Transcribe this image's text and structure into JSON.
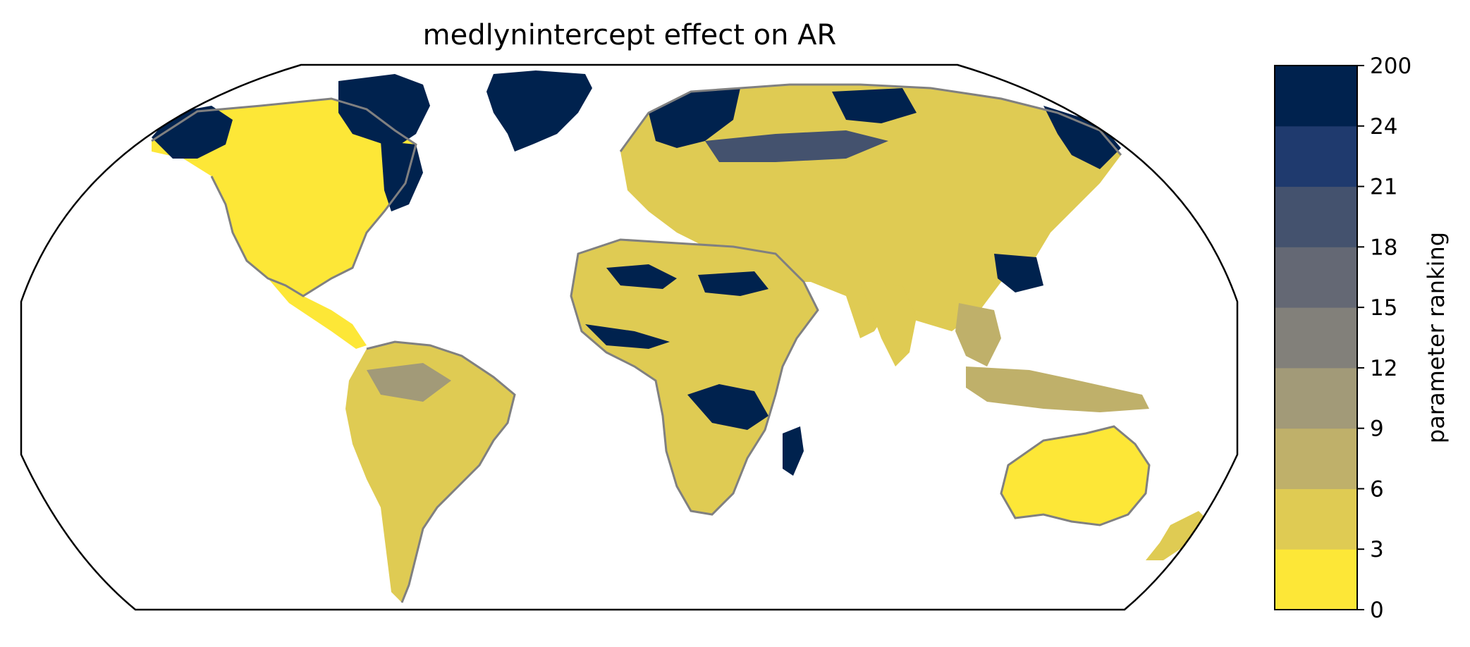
{
  "title": "medlynintercept effect on AR",
  "colorbar": {
    "label": "parameter ranking",
    "ticks": [
      "0",
      "3",
      "6",
      "9",
      "12",
      "15",
      "18",
      "21",
      "24",
      "200"
    ],
    "bins": [
      {
        "min": 0,
        "max": 3,
        "color": "#fde737"
      },
      {
        "min": 3,
        "max": 6,
        "color": "#dfcb53"
      },
      {
        "min": 6,
        "max": 9,
        "color": "#bfb06a"
      },
      {
        "min": 9,
        "max": 12,
        "color": "#a29a78"
      },
      {
        "min": 12,
        "max": 15,
        "color": "#82807a"
      },
      {
        "min": 15,
        "max": 18,
        "color": "#646874"
      },
      {
        "min": 18,
        "max": 21,
        "color": "#44526e"
      },
      {
        "min": 21,
        "max": 24,
        "color": "#1f3a6e"
      },
      {
        "min": 24,
        "max": 200,
        "color": "#00224e"
      }
    ]
  },
  "map": {
    "projection": "robinson",
    "coastline_color": "#808080",
    "ocean_color": "#ffffff"
  }
}
